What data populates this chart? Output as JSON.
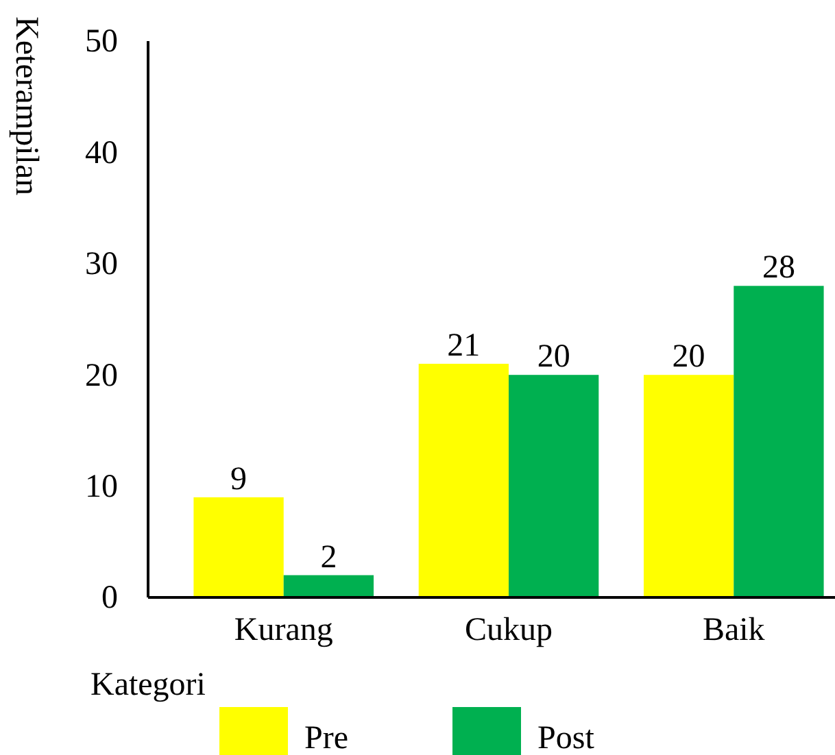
{
  "chart_data": {
    "type": "bar",
    "xlabel": "Kategori",
    "ylabel": "Keterampilan",
    "categories": [
      "Kurang",
      "Cukup",
      "Baik"
    ],
    "series": [
      {
        "name": "Pre",
        "color": "#ffff00",
        "values": [
          9,
          21,
          20
        ]
      },
      {
        "name": "Post",
        "color": "#00b050",
        "values": [
          2,
          20,
          28
        ]
      }
    ],
    "ylim": [
      0,
      50
    ],
    "yticks": [
      0,
      10,
      20,
      30,
      40,
      50
    ],
    "data_labels": true,
    "legend": "bottom",
    "grid": false
  }
}
